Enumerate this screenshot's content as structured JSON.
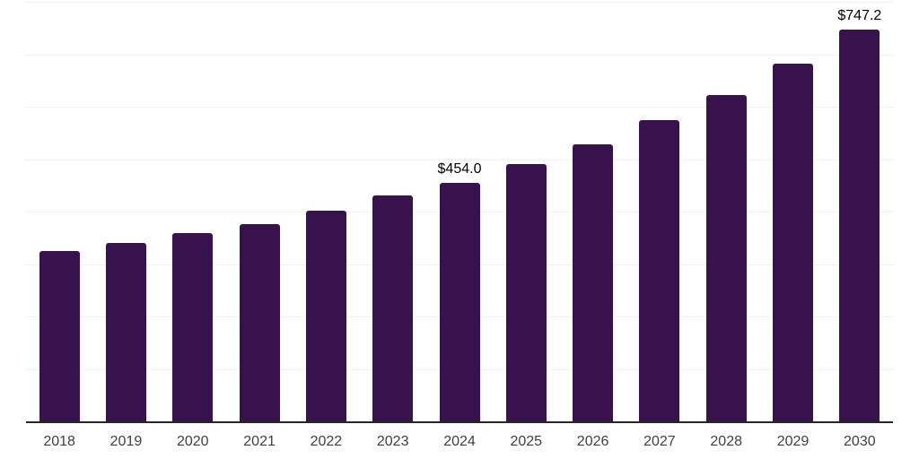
{
  "chart_data": {
    "type": "bar",
    "title": "",
    "xlabel": "",
    "ylabel": "",
    "categories": [
      "2018",
      "2019",
      "2020",
      "2021",
      "2022",
      "2023",
      "2024",
      "2025",
      "2026",
      "2027",
      "2028",
      "2029",
      "2030"
    ],
    "values": [
      325.3,
      340.8,
      358.5,
      376.6,
      401.7,
      431.3,
      454.0,
      490.1,
      528.7,
      574.4,
      622.7,
      682.6,
      747.2
    ],
    "data_labels": [
      "",
      "",
      "",
      "",
      "",
      "",
      "$454.0",
      "",
      "",
      "",
      "",
      "",
      "$747.2"
    ],
    "value_prefix": "$",
    "ylim": [
      0,
      800
    ],
    "grid_step": 100,
    "grid": true,
    "legend_position": "none",
    "colors": {
      "bar": "#38124D",
      "gridline": "#F2F2F2",
      "axis_line": "#262626",
      "tick_label": "#404040",
      "value_label": "#000000",
      "background": "#FFFFFF"
    }
  }
}
